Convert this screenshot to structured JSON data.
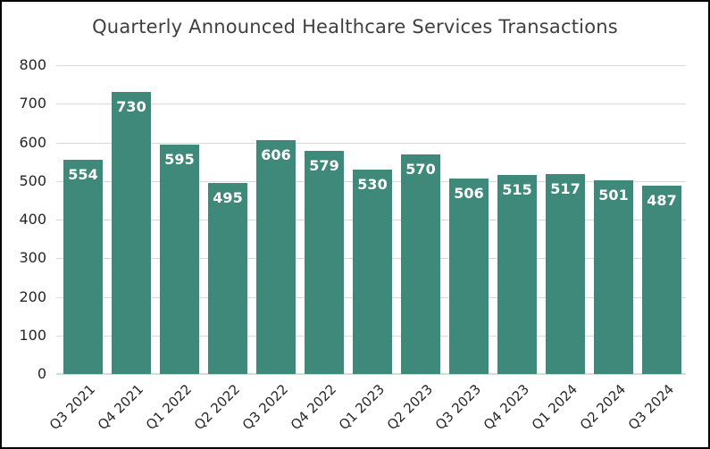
{
  "chart_data": {
    "type": "bar",
    "title": "Quarterly Announced Healthcare Services Transactions",
    "categories": [
      "Q3 2021",
      "Q4 2021",
      "Q1 2022",
      "Q2 2022",
      "Q3 2022",
      "Q4 2022",
      "Q1 2023",
      "Q2 2023",
      "Q3 2023",
      "Q4 2023",
      "Q1 2024",
      "Q2 2024",
      "Q3 2024"
    ],
    "values": [
      554,
      730,
      595,
      495,
      606,
      579,
      530,
      570,
      506,
      515,
      517,
      501,
      487
    ],
    "xlabel": "",
    "ylabel": "",
    "ylim": [
      0,
      800
    ],
    "y_ticks": [
      0,
      100,
      200,
      300,
      400,
      500,
      600,
      700,
      800
    ],
    "grid": true,
    "legend": "none",
    "bar_value_labels_inside_top": true,
    "x_label_rotation_degrees": 45,
    "colors": {
      "bar": "#3F897A",
      "bar_value_label": "#FFFFFF",
      "title": "#3F3F3F",
      "axis_text": "#262626",
      "gridline": "#D9D9D9",
      "frame_border": "#000000",
      "background": "#FFFFFF"
    }
  }
}
